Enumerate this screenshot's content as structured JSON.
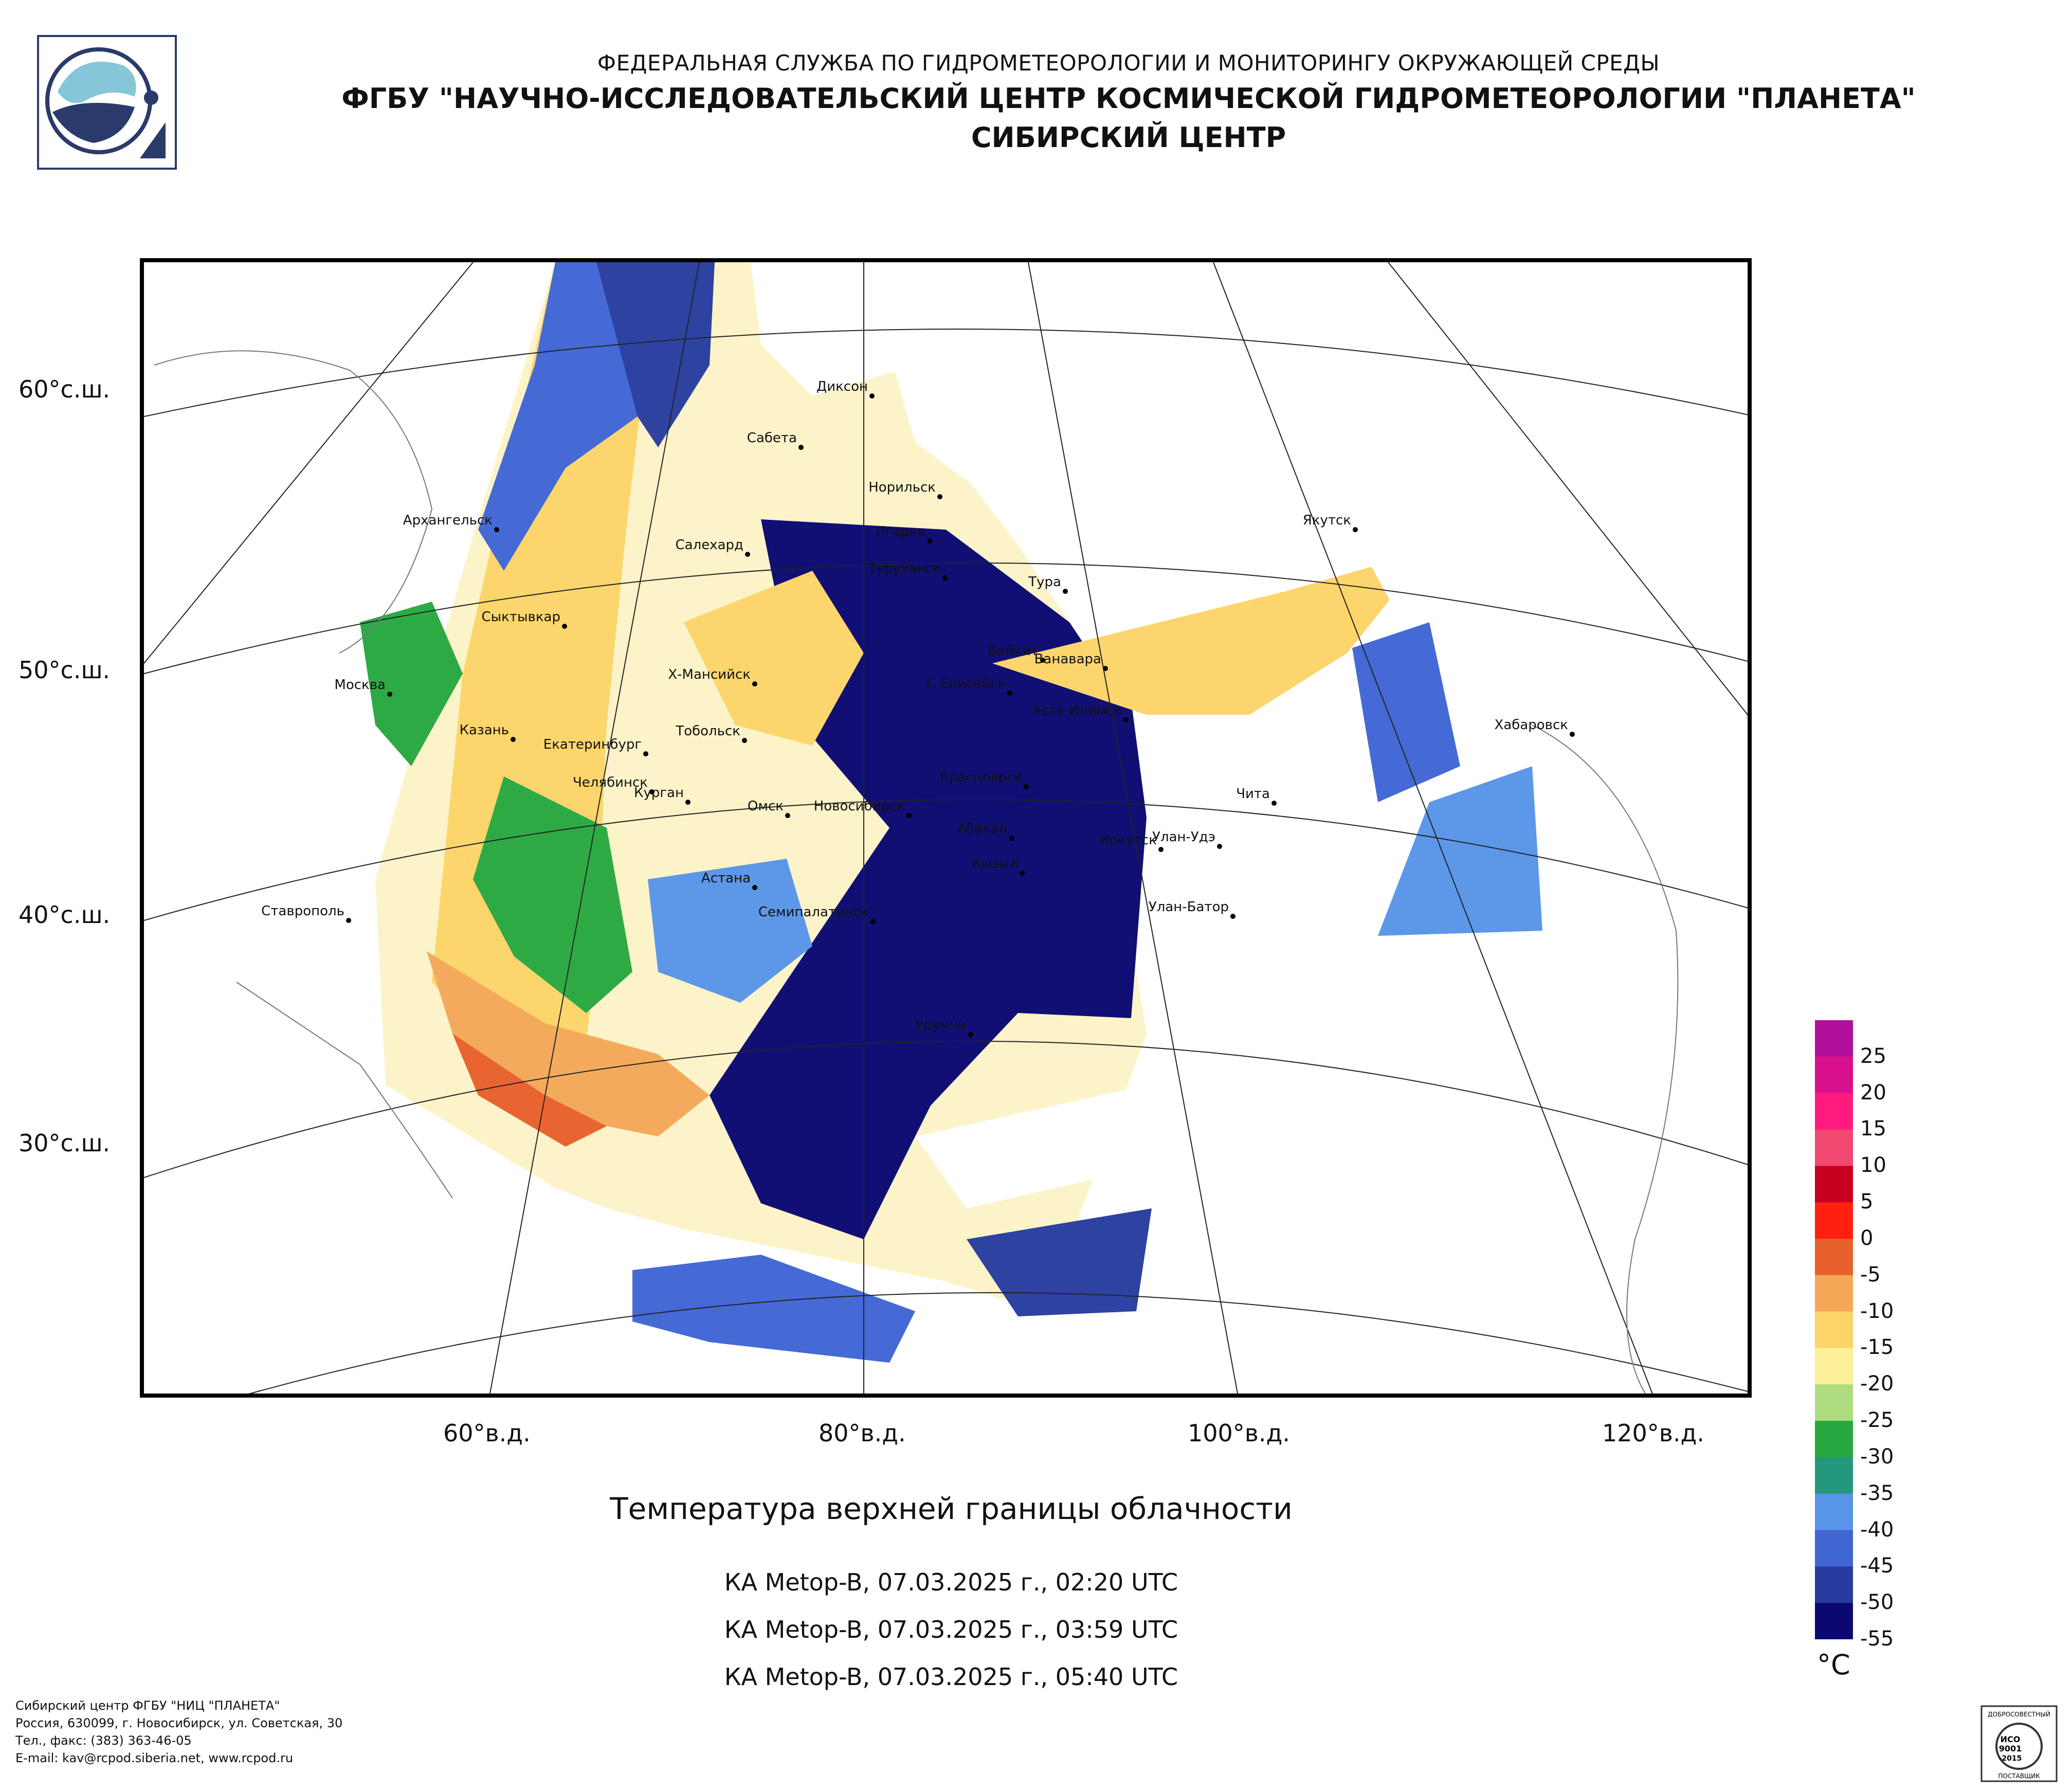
{
  "header": {
    "line1": "ФЕДЕРАЛЬНАЯ СЛУЖБА ПО ГИДРОМЕТЕОРОЛОГИИ И МОНИТОРИНГУ ОКРУЖАЮЩЕЙ СРЕДЫ",
    "line2": "ФГБУ \"НАУЧНО-ИССЛЕДОВАТЕЛЬСКИЙ ЦЕНТР КОСМИЧЕСКОЙ ГИДРОМЕТЕОРОЛОГИИ \"ПЛАНЕТА\"",
    "line3": "СИБИРСКИЙ ЦЕНТР"
  },
  "map": {
    "lat_labels": [
      "60°с.ш.",
      "50°с.ш.",
      "40°с.ш.",
      "30°с.ш."
    ],
    "lon_labels": [
      "60°в.д.",
      "80°в.д.",
      "100°в.д.",
      "120°в.д."
    ],
    "cities": [
      "Диксон",
      "Сабета",
      "Норильск",
      "Игарка",
      "Архангельск",
      "Салехард",
      "Туруханск",
      "Тура",
      "Якутск",
      "Сыктывкар",
      "Байкит",
      "Ванавара",
      "Москва",
      "Х-Мансийск",
      "С.Енисейск",
      "Усть-Илимск",
      "Казань",
      "Екатеринбург",
      "Тобольск",
      "Хабаровск",
      "Красноярск",
      "Челябинск",
      "Курган",
      "Омск",
      "Новосибирск",
      "Чита",
      "Абакан",
      "Улан-Удэ",
      "Иркутск",
      "Кызыл",
      "Астана",
      "Ставрополь",
      "Семипалатинск",
      "Улан-Батор",
      "Урумчи"
    ]
  },
  "title": "Температура верхней границы облачности",
  "passes": [
    "КА Metop-B, 07.03.2025 г., 02:20 UTC",
    "КА Metop-B, 07.03.2025 г., 03:59 UTC",
    "КА Metop-B, 07.03.2025 г., 05:40 UTC"
  ],
  "legend": {
    "unit": "°C",
    "labels": [
      "25",
      "20",
      "15",
      "10",
      "5",
      "0",
      "-5",
      "-10",
      "-15",
      "-20",
      "-25",
      "-30",
      "-35",
      "-40",
      "-45",
      "-50",
      "-55"
    ],
    "colors": [
      "#b0109a",
      "#d8108e",
      "#ff1a80",
      "#f04870",
      "#c80020",
      "#ff2010",
      "#e8602a",
      "#f4a858",
      "#fcd468",
      "#fcf098",
      "#b0dc80",
      "#28a840",
      "#24987c",
      "#5894e8",
      "#4066d4",
      "#283ca0",
      "#0a0870"
    ]
  },
  "footer": {
    "line1": "Сибирский центр ФГБУ \"НИЦ \"ПЛАНЕТА\"",
    "line2": "Россия, 630099, г. Новосибирск, ул. Советская, 30",
    "line3": "Тел., факс: (383) 363-46-05",
    "line4": "E-mail: kav@rcpod.siberia.net, www.rcpod.ru"
  },
  "certificate": {
    "top": "ДОБРОСОВЕСТНЫЙ",
    "line1": "ИСО",
    "line2": "9001",
    "line3": "-2015",
    "bottom": "ПОСТАВЩИК"
  }
}
